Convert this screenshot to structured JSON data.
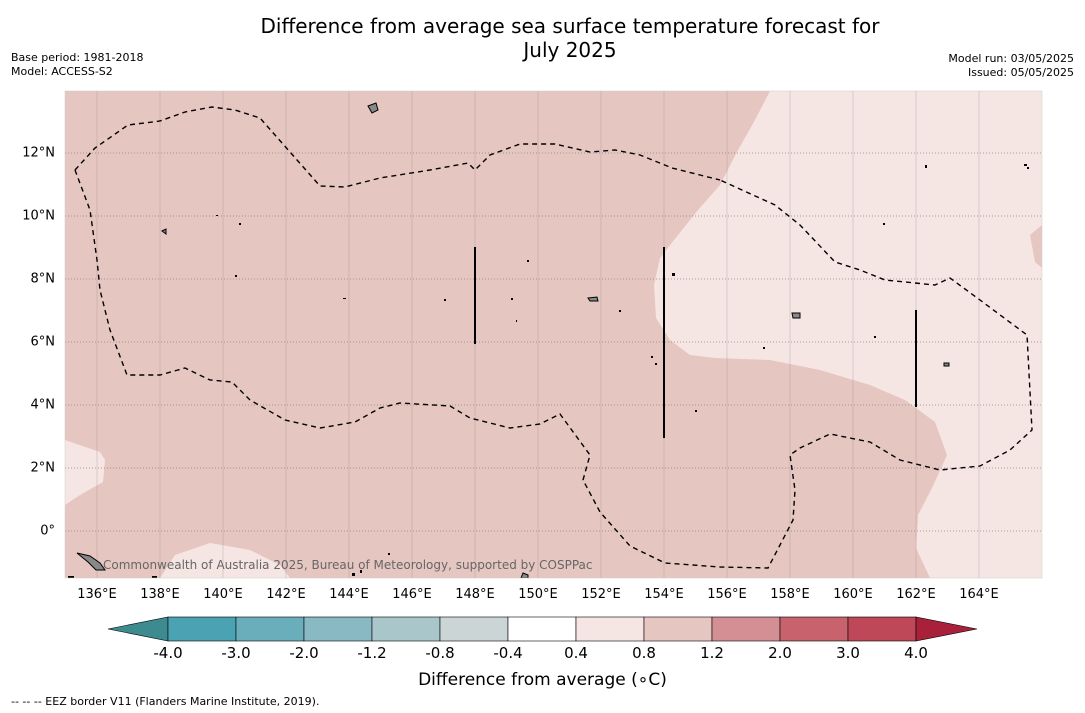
{
  "title_line1": "Difference from average sea surface temperature forecast for",
  "title_line2": "July 2025",
  "base_period": "Base period: 1981-2018",
  "model": "Model: ACCESS-S2",
  "model_run": "Model run: 03/05/2025",
  "issued": "Issued: 05/05/2025",
  "credit": "Commonwealth of Australia 2025, Bureau of Meteorology, supported by COSPPac",
  "footnote": "--  --  -- EEZ border V11 (Flanders Marine Institute, 2019).",
  "x_ticks": [
    "136°E",
    "138°E",
    "140°E",
    "142°E",
    "144°E",
    "146°E",
    "148°E",
    "150°E",
    "152°E",
    "154°E",
    "156°E",
    "158°E",
    "160°E",
    "162°E",
    "164°E"
  ],
  "y_ticks": [
    "12°N",
    "10°N",
    "8°N",
    "6°N",
    "4°N",
    "2°N",
    "0°"
  ],
  "colorbar": {
    "title": "Difference from average (∘C)",
    "labels": [
      "-4.0",
      "-3.0",
      "-2.0",
      "-1.2",
      "-0.8",
      "-0.4",
      "0.4",
      "0.8",
      "1.2",
      "2.0",
      "3.0",
      "4.0"
    ],
    "colors": [
      "#4aa2b2",
      "#6aaebc",
      "#89b9c3",
      "#a9c7ca",
      "#cbd5d6",
      "#ffffff",
      "#f5e6e4",
      "#e6c6c1",
      "#d48f94",
      "#c8626c",
      "#be4858"
    ],
    "under_color": "#3d8a8f",
    "over_color": "#a8203a"
  },
  "fill_colors": {
    "band_0p4_0p8": "#f5e6e4",
    "band_0p8_1p2": "#e6c6c1"
  }
}
